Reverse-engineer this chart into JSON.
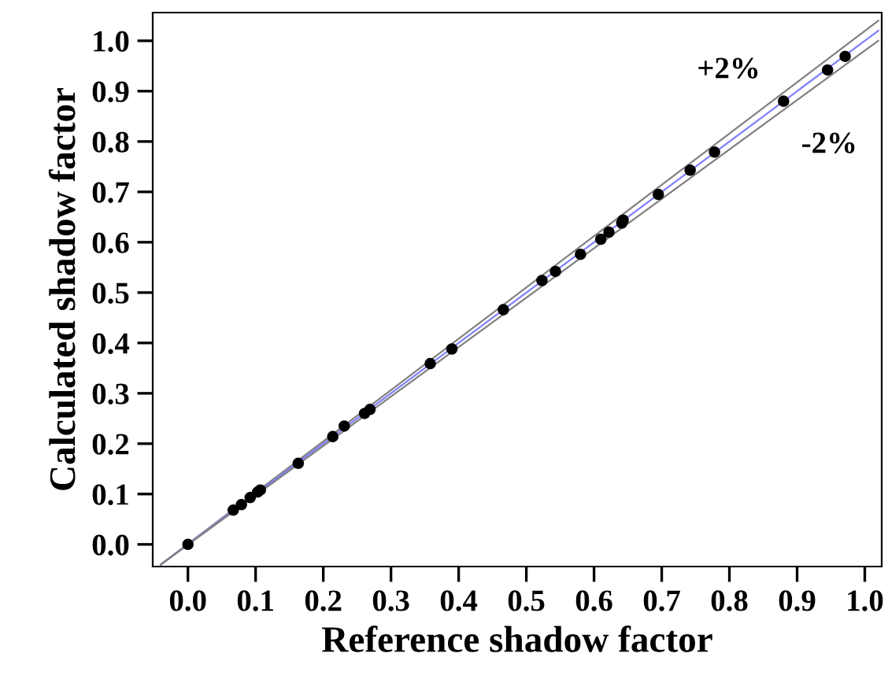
{
  "chart_data": {
    "type": "scatter",
    "xlabel": "Reference shadow factor",
    "ylabel": "Calculated shadow factor",
    "xlim": [
      -0.052,
      1.025
    ],
    "ylim": [
      -0.044,
      1.056
    ],
    "xticks": [
      {
        "value": 0,
        "label": "0.0"
      },
      0.1,
      0.2,
      0.3,
      0.4,
      0.5,
      0.6,
      0.7,
      0.8,
      0.9,
      {
        "value": 1,
        "label": "1.0"
      }
    ],
    "yticks": [
      {
        "value": 0,
        "label": "0.0"
      },
      0.1,
      0.2,
      0.3,
      0.4,
      0.5,
      0.6,
      0.7,
      0.8,
      0.9,
      {
        "value": 1,
        "label": "1.0"
      }
    ],
    "grid": false,
    "legend": false,
    "marker": "circle",
    "series": [
      {
        "type": "line",
        "color": "#808080",
        "x": [
          -0.04,
          1.02
        ],
        "values": [
          -0.04,
          1.04
        ],
        "marker": "none"
      },
      {
        "type": "line",
        "color": "#7f7fff",
        "x": [
          -0.04,
          1.02
        ],
        "values": [
          -0.04,
          1.02
        ],
        "marker": "none"
      },
      {
        "type": "line",
        "color": "#808080",
        "x": [
          -0.04,
          1.02
        ],
        "values": [
          -0.04,
          1.0
        ],
        "marker": "none"
      },
      {
        "color": "#000000",
        "x": [
          0,
          0.067,
          0.079,
          0.092,
          0.103,
          0.107,
          0.163,
          0.214,
          0.231,
          0.261,
          0.269,
          0.358,
          0.39,
          0.466,
          0.523,
          0.543,
          0.58,
          0.61,
          0.622,
          0.641,
          0.643,
          0.695,
          0.742,
          0.778,
          0.88,
          0.945,
          0.971
        ],
        "values": [
          0,
          0.068,
          0.079,
          0.093,
          0.104,
          0.108,
          0.161,
          0.214,
          0.235,
          0.26,
          0.268,
          0.359,
          0.388,
          0.466,
          0.524,
          0.542,
          0.576,
          0.606,
          0.62,
          0.638,
          0.644,
          0.695,
          0.743,
          0.779,
          0.88,
          0.942,
          0.969
        ]
      }
    ],
    "annotations": [
      "+2%",
      "-2%"
    ]
  }
}
